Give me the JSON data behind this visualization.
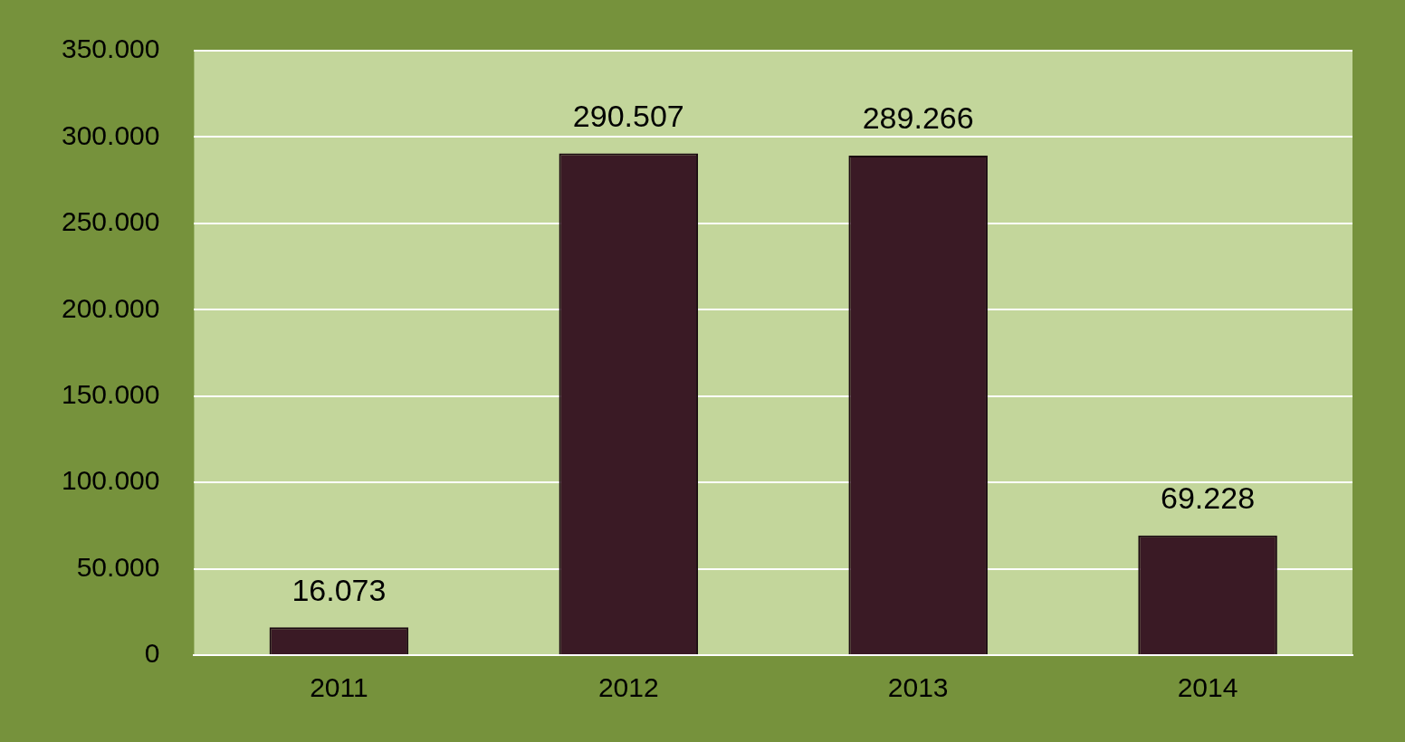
{
  "chart_data": {
    "type": "bar",
    "categories": [
      "2011",
      "2012",
      "2013",
      "2014"
    ],
    "values": [
      16073,
      290507,
      289266,
      69228
    ],
    "value_labels": [
      "16.073",
      "290.507",
      "289.266",
      "69.228"
    ],
    "color": "#3a1a25",
    "ylim": [
      0,
      350000
    ],
    "yticks": [
      {
        "value": 0,
        "label": "0"
      },
      {
        "value": 50000,
        "label": "50.000"
      },
      {
        "value": 100000,
        "label": "100.000"
      },
      {
        "value": 150000,
        "label": "150.000"
      },
      {
        "value": 200000,
        "label": "200.000"
      },
      {
        "value": 250000,
        "label": "250.000"
      },
      {
        "value": 300000,
        "label": "300.000"
      },
      {
        "value": 350000,
        "label": "350.000"
      }
    ],
    "grid": "y",
    "legend": false
  }
}
